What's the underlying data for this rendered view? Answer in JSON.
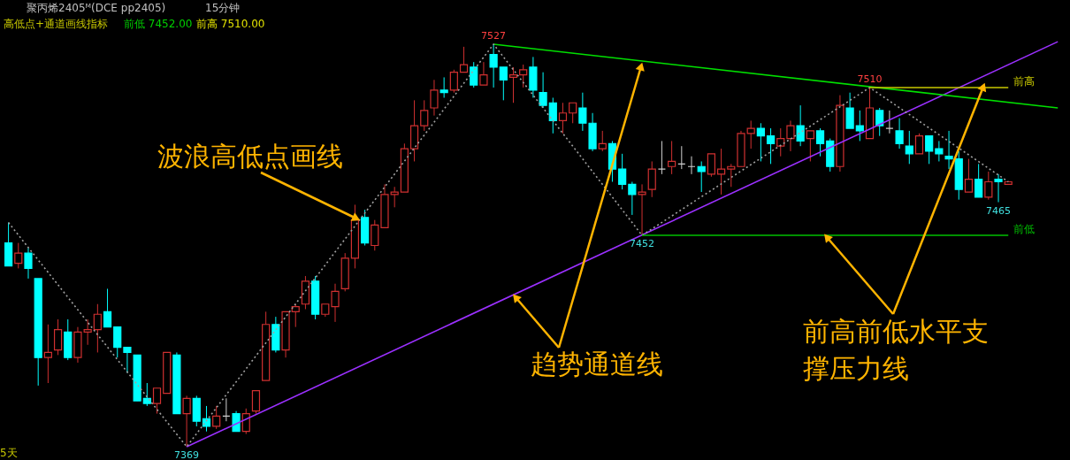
{
  "chart_data": {
    "type": "candlestick",
    "title": "聚丙烯2405ᴹ(DCE pp2405)",
    "subtitle": "15分钟",
    "categories": [
      null,
      null,
      null,
      null,
      null,
      null,
      null,
      null,
      null,
      null,
      null,
      null,
      null,
      null,
      null,
      null,
      null,
      null,
      null,
      null,
      null,
      null,
      null,
      null,
      null,
      null,
      null,
      null,
      null,
      null,
      null,
      null,
      null,
      null,
      null,
      null,
      null,
      null,
      null,
      null,
      null,
      null,
      null,
      null,
      null,
      null,
      null,
      null,
      null,
      null,
      null,
      null,
      null,
      null,
      null,
      null,
      null,
      null,
      null,
      null,
      null,
      null,
      null,
      null,
      null,
      null,
      null,
      null,
      null,
      null,
      null,
      null,
      null,
      null,
      null,
      null,
      null,
      null,
      null,
      null,
      null,
      null,
      null,
      null,
      null,
      null,
      null,
      null,
      null,
      null,
      null,
      null,
      null,
      null,
      null,
      null,
      null,
      null,
      null,
      null,
      null,
      null,
      null,
      null,
      null,
      null,
      null
    ],
    "ohlc": [
      [
        7449,
        7457,
        7440,
        7440
      ],
      [
        7441,
        7449,
        7439,
        7445
      ],
      [
        7445,
        7447,
        7435,
        7439
      ],
      [
        7435,
        7435,
        7393,
        7404
      ],
      [
        7404,
        7417,
        7394,
        7406
      ],
      [
        7407,
        7419,
        7405,
        7415
      ],
      [
        7414,
        7419,
        7403,
        7404
      ],
      [
        7404,
        7416,
        7402,
        7414
      ],
      [
        7414,
        7419,
        7409,
        7415
      ],
      [
        7415,
        7425,
        7406,
        7421
      ],
      [
        7422,
        7431,
        7416,
        7416
      ],
      [
        7416,
        7416,
        7404,
        7408
      ],
      [
        7408,
        7408,
        7398,
        7406
      ],
      [
        7405,
        7405,
        7387,
        7387
      ],
      [
        7388,
        7394,
        7385,
        7386
      ],
      [
        7386,
        7392,
        7382,
        7392
      ],
      [
        7390,
        7406,
        7390,
        7406
      ],
      [
        7405,
        7406,
        7382,
        7382
      ],
      [
        7382,
        7389,
        7369,
        7388
      ],
      [
        7388,
        7389,
        7377,
        7379
      ],
      [
        7380,
        7385,
        7375,
        7377
      ],
      [
        7377,
        7385,
        7376,
        7381
      ],
      [
        7381,
        7388,
        7379,
        7381
      ],
      [
        7382,
        7383,
        7375,
        7375
      ],
      [
        7375,
        7384,
        7374,
        7382
      ],
      [
        7383,
        7391,
        7382,
        7391
      ],
      [
        7395,
        7422,
        7395,
        7417
      ],
      [
        7417,
        7420,
        7406,
        7407
      ],
      [
        7407,
        7422,
        7404,
        7422
      ],
      [
        7422,
        7425,
        7416,
        7424
      ],
      [
        7425,
        7436,
        7423,
        7434
      ],
      [
        7434,
        7436,
        7419,
        7421
      ],
      [
        7421,
        7425,
        7420,
        7425
      ],
      [
        7424,
        7433,
        7418,
        7430
      ],
      [
        7431,
        7445,
        7430,
        7443
      ],
      [
        7443,
        7464,
        7439,
        7458
      ],
      [
        7459,
        7462,
        7448,
        7449
      ],
      [
        7448,
        7458,
        7446,
        7456
      ],
      [
        7455,
        7472,
        7455,
        7468
      ],
      [
        7468,
        7471,
        7463,
        7469
      ],
      [
        7469,
        7488,
        7469,
        7486
      ],
      [
        7486,
        7505,
        7481,
        7495
      ],
      [
        7495,
        7505,
        7493,
        7501
      ],
      [
        7502,
        7513,
        7499,
        7509
      ],
      [
        7509,
        7514,
        7506,
        7508
      ],
      [
        7509,
        7517,
        7508,
        7516
      ],
      [
        7516,
        7526,
        7516,
        7519
      ],
      [
        7518,
        7520,
        7510,
        7511
      ],
      [
        7511,
        7520,
        7511,
        7515
      ],
      [
        7523,
        7527,
        7510,
        7518
      ],
      [
        7518,
        7518,
        7505,
        7513
      ],
      [
        7514,
        7518,
        7504,
        7515
      ],
      [
        7515,
        7519,
        7510,
        7517
      ],
      [
        7518,
        7522,
        7506,
        7509
      ],
      [
        7508,
        7516,
        7502,
        7503
      ],
      [
        7504,
        7506,
        7492,
        7497
      ],
      [
        7497,
        7504,
        7492,
        7500
      ],
      [
        7500,
        7504,
        7496,
        7504
      ],
      [
        7502,
        7508,
        7493,
        7496
      ],
      [
        7496,
        7500,
        7485,
        7486
      ],
      [
        7486,
        7493,
        7485,
        7488
      ],
      [
        7488,
        7489,
        7473,
        7478
      ],
      [
        7478,
        7484,
        7470,
        7472
      ],
      [
        7472,
        7473,
        7460,
        7468
      ],
      [
        7468,
        7472,
        7452,
        7469
      ],
      [
        7470,
        7481,
        7467,
        7478
      ],
      [
        7478,
        7489,
        7476,
        7478
      ],
      [
        7479,
        7489,
        7476,
        7481
      ],
      [
        7480,
        7487,
        7478,
        7480
      ],
      [
        7479,
        7483,
        7476,
        7479
      ],
      [
        7479,
        7481,
        7469,
        7477
      ],
      [
        7476,
        7484,
        7475,
        7484
      ],
      [
        7476,
        7486,
        7468,
        7478
      ],
      [
        7478,
        7480,
        7471,
        7479
      ],
      [
        7479,
        7493,
        7479,
        7492
      ],
      [
        7492,
        7497,
        7486,
        7494
      ],
      [
        7494,
        7496,
        7481,
        7491
      ],
      [
        7491,
        7494,
        7480,
        7488
      ],
      [
        7487,
        7494,
        7483,
        7490
      ],
      [
        7490,
        7497,
        7485,
        7495
      ],
      [
        7495,
        7503,
        7487,
        7489
      ],
      [
        7490,
        7493,
        7481,
        7493
      ],
      [
        7493,
        7494,
        7483,
        7488
      ],
      [
        7489,
        7490,
        7477,
        7479
      ],
      [
        7479,
        7507,
        7477,
        7503
      ],
      [
        7502,
        7508,
        7494,
        7494
      ],
      [
        7495,
        7501,
        7489,
        7493
      ],
      [
        7490,
        7510,
        7490,
        7502
      ],
      [
        7501,
        7502,
        7491,
        7495
      ],
      [
        7494,
        7501,
        7492,
        7494
      ],
      [
        7493,
        7498,
        7486,
        7488
      ],
      [
        7487,
        7493,
        7480,
        7484
      ],
      [
        7484,
        7492,
        7484,
        7491
      ],
      [
        7491,
        7491,
        7480,
        7485
      ],
      [
        7486,
        7489,
        7481,
        7484
      ],
      [
        7483,
        7493,
        7478,
        7482
      ],
      [
        7482,
        7485,
        7466,
        7470
      ],
      [
        7469,
        7482,
        7469,
        7474
      ],
      [
        7474,
        7480,
        7467,
        7467
      ],
      [
        7467,
        7477,
        7466,
        7473
      ],
      [
        7474,
        7476,
        7465,
        7473
      ],
      [
        7472,
        7473,
        7472,
        7473
      ],
      null,
      null,
      null,
      null,
      null
    ],
    "colors": [
      "#00ffff",
      "#d03030",
      "#00ffff",
      "#00ffff",
      "#d03030",
      "#d03030",
      "#00ffff",
      "#d03030",
      "#d03030",
      "#d03030",
      "#00ffff",
      "#00ffff",
      "#00ffff",
      "#00ffff",
      "#00ffff",
      "#d03030",
      "#d03030",
      "#00ffff",
      "#d03030",
      "#00ffff",
      "#00ffff",
      "#d03030",
      "#d0d0d0",
      "#00ffff",
      "#d03030",
      "#d03030",
      "#d03030",
      "#00ffff",
      "#d03030",
      "#d03030",
      "#d03030",
      "#00ffff",
      "#d03030",
      "#d03030",
      "#d03030",
      "#d03030",
      "#00ffff",
      "#d03030",
      "#d03030",
      "#d03030",
      "#d03030",
      "#d03030",
      "#d03030",
      "#d03030",
      "#00ffff",
      "#d03030",
      "#d03030",
      "#00ffff",
      "#d03030",
      "#00ffff",
      "#00ffff",
      "#d03030",
      "#d03030",
      "#00ffff",
      "#00ffff",
      "#00ffff",
      "#d03030",
      "#d03030",
      "#00ffff",
      "#00ffff",
      "#d03030",
      "#00ffff",
      "#00ffff",
      "#00ffff",
      "#d03030",
      "#d03030",
      "#d0d0d0",
      "#d03030",
      "#d0d0d0",
      "#d0d0d0",
      "#00ffff",
      "#d03030",
      "#d03030",
      "#d03030",
      "#d03030",
      "#d03030",
      "#00ffff",
      "#00ffff",
      "#d03030",
      "#d03030",
      "#00ffff",
      "#d03030",
      "#00ffff",
      "#00ffff",
      "#d03030",
      "#00ffff",
      "#00ffff",
      "#d03030",
      "#00ffff",
      "#d0d0d0",
      "#00ffff",
      "#00ffff",
      "#d03030",
      "#00ffff",
      "#00ffff",
      "#00ffff",
      "#00ffff",
      "#d03030",
      "#00ffff",
      "#d03030",
      "#00ffff",
      "#d03030",
      null,
      null,
      null,
      null,
      null
    ],
    "series": [
      {
        "type": "line",
        "color": "#9b30ff",
        "values": [
          null,
          null,
          null,
          null,
          null,
          null,
          null,
          null,
          null,
          null,
          null,
          null,
          null,
          null,
          null,
          null,
          null,
          null,
          7369,
          null,
          null,
          null,
          null,
          null,
          null,
          null,
          null,
          null,
          null,
          null,
          null,
          null,
          null,
          null,
          null,
          null,
          null,
          null,
          null,
          null,
          null,
          null,
          null,
          null,
          null,
          null,
          null,
          null,
          null,
          null,
          null,
          null,
          null,
          null,
          null,
          null,
          null,
          null,
          null,
          null,
          null,
          null,
          null,
          null,
          null,
          null,
          null,
          null,
          null,
          null,
          null,
          null,
          null,
          null,
          null,
          null,
          null,
          null,
          null,
          null,
          null,
          null,
          null,
          null,
          null,
          null,
          null,
          null,
          null,
          null,
          null,
          null,
          null,
          null,
          null,
          null,
          null,
          null,
          null,
          null,
          null,
          null,
          null,
          null,
          null,
          null,
          7528
        ]
      },
      {
        "type": "line",
        "color": "#00e000",
        "values": [
          null,
          null,
          null,
          null,
          null,
          null,
          null,
          null,
          null,
          null,
          null,
          null,
          null,
          null,
          null,
          null,
          null,
          null,
          null,
          null,
          null,
          null,
          null,
          null,
          null,
          null,
          null,
          null,
          null,
          null,
          null,
          null,
          null,
          null,
          null,
          null,
          null,
          null,
          null,
          null,
          null,
          null,
          null,
          null,
          null,
          null,
          null,
          null,
          null,
          7527,
          null,
          null,
          null,
          null,
          null,
          null,
          null,
          null,
          null,
          null,
          null,
          null,
          null,
          null,
          null,
          null,
          null,
          null,
          null,
          null,
          null,
          null,
          null,
          null,
          null,
          null,
          null,
          null,
          null,
          null,
          null,
          null,
          null,
          null,
          null,
          null,
          null,
          null,
          null,
          null,
          null,
          null,
          null,
          null,
          null,
          null,
          null,
          null,
          null,
          null,
          null,
          null,
          null,
          null,
          null,
          null,
          7502
        ]
      },
      {
        "type": "line",
        "color": "#a0a0a0",
        "line_style": "dotted",
        "values": [
          7457,
          null,
          null,
          null,
          null,
          null,
          null,
          null,
          null,
          null,
          null,
          null,
          null,
          null,
          null,
          null,
          null,
          null,
          7369,
          null,
          null,
          null,
          null,
          null,
          null,
          null,
          null,
          null,
          null,
          null,
          null,
          null,
          null,
          null,
          null,
          null,
          null,
          null,
          null,
          null,
          null,
          null,
          null,
          null,
          null,
          null,
          null,
          null,
          null,
          7527,
          null,
          null,
          null,
          null,
          null,
          null,
          null,
          null,
          null,
          null,
          null,
          null,
          null,
          null,
          7452,
          null,
          null,
          null,
          null,
          null,
          null,
          null,
          null,
          null,
          null,
          null,
          null,
          null,
          null,
          null,
          null,
          null,
          null,
          null,
          null,
          null,
          null,
          7510,
          null,
          null,
          null,
          null,
          null,
          null,
          null,
          null,
          null,
          null,
          null,
          null,
          null,
          7473,
          null,
          null,
          null,
          null,
          null
        ]
      },
      {
        "type": "line",
        "name": "前高",
        "color": "#c8c800",
        "values": [
          null,
          null,
          null,
          null,
          null,
          null,
          null,
          null,
          null,
          null,
          null,
          null,
          null,
          null,
          null,
          null,
          null,
          null,
          null,
          null,
          null,
          null,
          null,
          null,
          null,
          null,
          null,
          null,
          null,
          null,
          null,
          null,
          null,
          null,
          null,
          null,
          null,
          null,
          null,
          null,
          null,
          null,
          null,
          null,
          null,
          null,
          null,
          null,
          null,
          null,
          null,
          null,
          null,
          null,
          null,
          null,
          null,
          null,
          null,
          null,
          null,
          null,
          null,
          null,
          null,
          null,
          null,
          null,
          null,
          null,
          null,
          null,
          null,
          null,
          null,
          null,
          null,
          null,
          null,
          null,
          null,
          null,
          null,
          null,
          null,
          null,
          null,
          7510,
          null,
          null,
          null,
          null,
          null,
          null,
          null,
          null,
          null,
          null,
          null,
          null,
          null,
          7510,
          null,
          null,
          null,
          null,
          null
        ]
      },
      {
        "type": "line",
        "name": "前低",
        "color": "#00c000",
        "values": [
          null,
          null,
          null,
          null,
          null,
          null,
          null,
          null,
          null,
          null,
          null,
          null,
          null,
          null,
          null,
          null,
          null,
          null,
          null,
          null,
          null,
          null,
          null,
          null,
          null,
          null,
          null,
          null,
          null,
          null,
          null,
          null,
          null,
          null,
          null,
          null,
          null,
          null,
          null,
          null,
          null,
          null,
          null,
          null,
          null,
          null,
          null,
          null,
          null,
          null,
          null,
          null,
          null,
          null,
          null,
          null,
          null,
          null,
          null,
          null,
          null,
          null,
          null,
          null,
          7452,
          null,
          null,
          null,
          null,
          null,
          null,
          null,
          null,
          null,
          null,
          null,
          null,
          null,
          null,
          null,
          null,
          null,
          null,
          null,
          null,
          null,
          null,
          null,
          null,
          null,
          null,
          null,
          null,
          null,
          null,
          null,
          null,
          null,
          null,
          null,
          null,
          7452,
          null,
          null,
          null,
          null,
          null
        ]
      }
    ],
    "annotations": [
      "高低点+通道画线指标",
      "前低 7452.00",
      "前高 7510.00",
      "波浪高低点画线",
      "趋势通道线",
      "前高前低水平支",
      "撑压力线",
      "5天",
      {
        "text": "7527",
        "y": 7527
      },
      {
        "text": "7369",
        "y": 7369
      },
      {
        "text": "7452",
        "y": 7452
      },
      {
        "text": "7510",
        "y": 7510
      },
      {
        "text": "7465",
        "y": 7465
      }
    ]
  }
}
